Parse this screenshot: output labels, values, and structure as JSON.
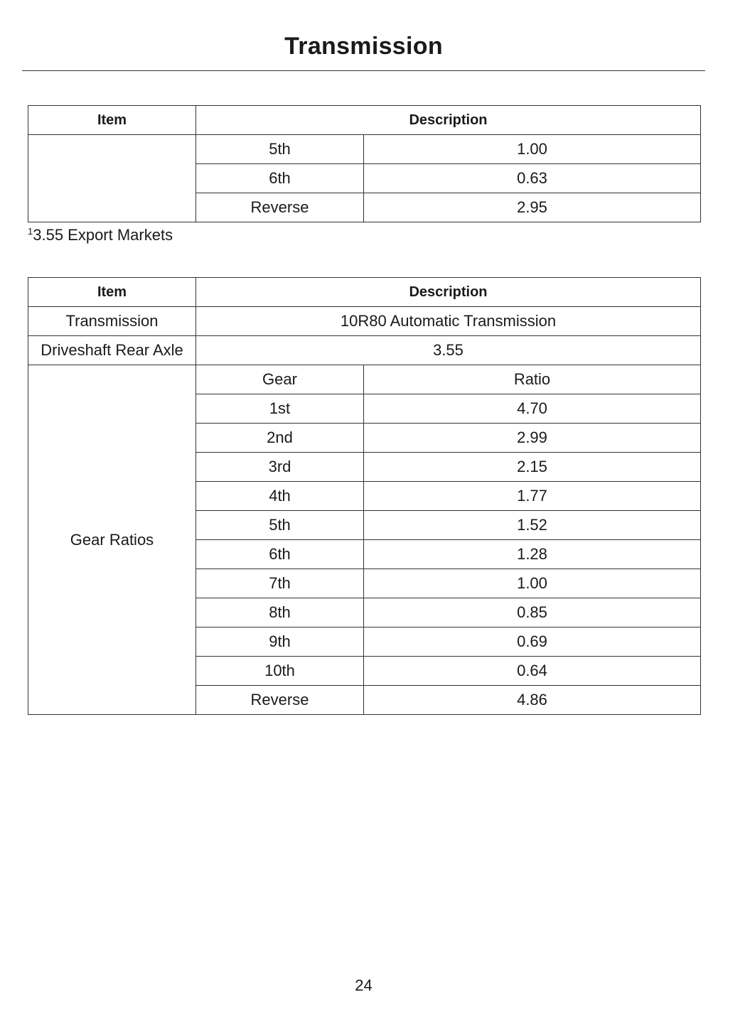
{
  "title": "Transmission",
  "table1": {
    "headers": [
      "Item",
      "Description"
    ],
    "rows": [
      {
        "gear": "5th",
        "ratio": "1.00"
      },
      {
        "gear": "6th",
        "ratio": "0.63"
      },
      {
        "gear": "Reverse",
        "ratio": "2.95"
      }
    ]
  },
  "footnote": {
    "marker": "1",
    "text": "3.55 Export Markets"
  },
  "table2": {
    "headers": [
      "Item",
      "Description"
    ],
    "transmission": {
      "item": "Transmission",
      "value": "10R80 Automatic Transmission"
    },
    "axle": {
      "item": "Driveshaft Rear Axle",
      "value": "3.55"
    },
    "gear_ratios": {
      "item": "Gear Ratios",
      "col_headers": [
        "Gear",
        "Ratio"
      ],
      "rows": [
        {
          "gear": "1st",
          "ratio": "4.70"
        },
        {
          "gear": "2nd",
          "ratio": "2.99"
        },
        {
          "gear": "3rd",
          "ratio": "2.15"
        },
        {
          "gear": "4th",
          "ratio": "1.77"
        },
        {
          "gear": "5th",
          "ratio": "1.52"
        },
        {
          "gear": "6th",
          "ratio": "1.28"
        },
        {
          "gear": "7th",
          "ratio": "1.00"
        },
        {
          "gear": "8th",
          "ratio": "0.85"
        },
        {
          "gear": "9th",
          "ratio": "0.69"
        },
        {
          "gear": "10th",
          "ratio": "0.64"
        },
        {
          "gear": "Reverse",
          "ratio": "4.86"
        }
      ]
    }
  },
  "page_number": "24"
}
